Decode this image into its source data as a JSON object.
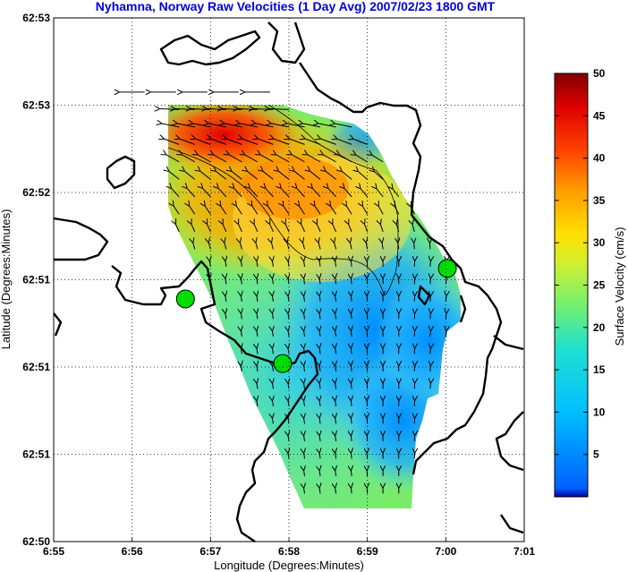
{
  "chart_data": {
    "type": "heatmap",
    "title": "Nyhamna, Norway Raw Velocities (1 Day Avg) 2007/02/23 1800 GMT",
    "xlabel": "Longitude (Degrees:Minutes)",
    "ylabel": "Latitude (Degrees:Minutes)",
    "x_ticks": [
      "6:55",
      "6:56",
      "6:57",
      "6:58",
      "6:59",
      "7:00",
      "7:01"
    ],
    "y_ticks": [
      "62:53",
      "62:53",
      "62:52",
      "62:51",
      "62:51",
      "62:51",
      "62:50"
    ],
    "xlim": [
      0,
      6
    ],
    "ylim": [
      0,
      6
    ],
    "grid": true,
    "colorbar": {
      "label": "Surface Velocity (cm/s)",
      "ticks": [
        5,
        10,
        15,
        20,
        25,
        30,
        35,
        40,
        45,
        50
      ],
      "range": [
        0,
        50
      ],
      "colormap": "jet"
    },
    "stations": [
      {
        "x": 1.68,
        "y": 2.78
      },
      {
        "x": 2.92,
        "y": 2.04
      },
      {
        "x": 5.02,
        "y": 3.13
      }
    ],
    "velocity_samples": [
      {
        "x": 1.4,
        "y": 5.0,
        "speed": 45
      },
      {
        "x": 1.8,
        "y": 5.0,
        "speed": 48
      },
      {
        "x": 2.2,
        "y": 5.0,
        "speed": 48
      },
      {
        "x": 2.6,
        "y": 5.0,
        "speed": 46
      },
      {
        "x": 2.4,
        "y": 4.6,
        "speed": 40
      },
      {
        "x": 3.0,
        "y": 4.4,
        "speed": 38
      },
      {
        "x": 3.4,
        "y": 4.2,
        "speed": 35
      },
      {
        "x": 2.0,
        "y": 3.8,
        "speed": 22
      },
      {
        "x": 3.0,
        "y": 3.4,
        "speed": 22
      },
      {
        "x": 4.0,
        "y": 3.6,
        "speed": 28
      },
      {
        "x": 4.3,
        "y": 2.6,
        "speed": 12
      },
      {
        "x": 4.7,
        "y": 2.0,
        "speed": 8
      },
      {
        "x": 4.6,
        "y": 1.2,
        "speed": 7
      },
      {
        "x": 3.6,
        "y": 1.2,
        "speed": 16
      },
      {
        "x": 3.0,
        "y": 0.6,
        "speed": 18
      },
      {
        "x": 4.4,
        "y": 0.6,
        "speed": 14
      }
    ]
  }
}
